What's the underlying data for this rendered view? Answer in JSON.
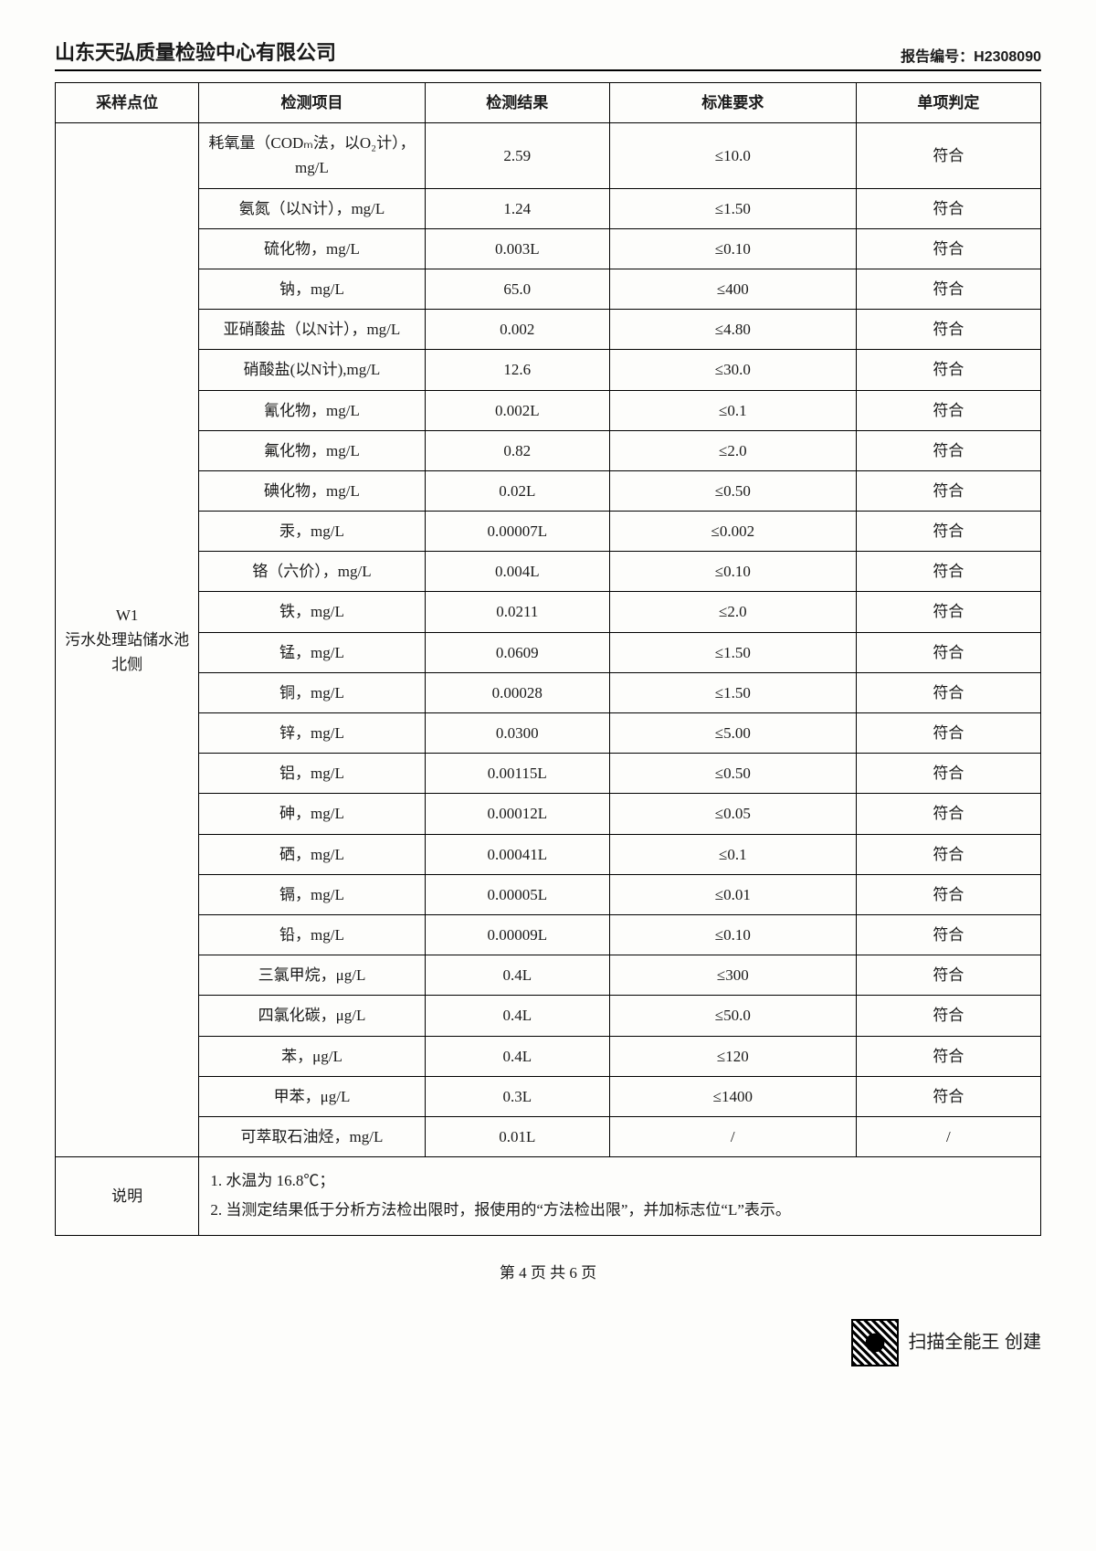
{
  "header": {
    "company": "山东天弘质量检验中心有限公司",
    "report_label": "报告编号：",
    "report_no": "H2308090"
  },
  "columns": {
    "point": "采样点位",
    "item": "检测项目",
    "result": "检测结果",
    "standard": "标准要求",
    "judgement": "单项判定"
  },
  "sampling_point": "W1\n污水处理站储水池\n北侧",
  "rows": [
    {
      "item": "耗氧量（CODₘ法，以O₂计），mg/L",
      "result": "2.59",
      "std": "≤10.0",
      "judge": "符合"
    },
    {
      "item": "氨氮（以N计），mg/L",
      "result": "1.24",
      "std": "≤1.50",
      "judge": "符合"
    },
    {
      "item": "硫化物，mg/L",
      "result": "0.003L",
      "std": "≤0.10",
      "judge": "符合"
    },
    {
      "item": "钠，mg/L",
      "result": "65.0",
      "std": "≤400",
      "judge": "符合"
    },
    {
      "item": "亚硝酸盐（以N计），mg/L",
      "result": "0.002",
      "std": "≤4.80",
      "judge": "符合"
    },
    {
      "item": "硝酸盐(以N计),mg/L",
      "result": "12.6",
      "std": "≤30.0",
      "judge": "符合"
    },
    {
      "item": "氰化物，mg/L",
      "result": "0.002L",
      "std": "≤0.1",
      "judge": "符合"
    },
    {
      "item": "氟化物，mg/L",
      "result": "0.82",
      "std": "≤2.0",
      "judge": "符合"
    },
    {
      "item": "碘化物，mg/L",
      "result": "0.02L",
      "std": "≤0.50",
      "judge": "符合"
    },
    {
      "item": "汞，mg/L",
      "result": "0.00007L",
      "std": "≤0.002",
      "judge": "符合"
    },
    {
      "item": "铬（六价），mg/L",
      "result": "0.004L",
      "std": "≤0.10",
      "judge": "符合"
    },
    {
      "item": "铁，mg/L",
      "result": "0.0211",
      "std": "≤2.0",
      "judge": "符合"
    },
    {
      "item": "锰，mg/L",
      "result": "0.0609",
      "std": "≤1.50",
      "judge": "符合"
    },
    {
      "item": "铜，mg/L",
      "result": "0.00028",
      "std": "≤1.50",
      "judge": "符合"
    },
    {
      "item": "锌，mg/L",
      "result": "0.0300",
      "std": "≤5.00",
      "judge": "符合"
    },
    {
      "item": "铝，mg/L",
      "result": "0.00115L",
      "std": "≤0.50",
      "judge": "符合"
    },
    {
      "item": "砷，mg/L",
      "result": "0.00012L",
      "std": "≤0.05",
      "judge": "符合"
    },
    {
      "item": "硒，mg/L",
      "result": "0.00041L",
      "std": "≤0.1",
      "judge": "符合"
    },
    {
      "item": "镉，mg/L",
      "result": "0.00005L",
      "std": "≤0.01",
      "judge": "符合"
    },
    {
      "item": "铅，mg/L",
      "result": "0.00009L",
      "std": "≤0.10",
      "judge": "符合"
    },
    {
      "item": "三氯甲烷，μg/L",
      "result": "0.4L",
      "std": "≤300",
      "judge": "符合"
    },
    {
      "item": "四氯化碳，μg/L",
      "result": "0.4L",
      "std": "≤50.0",
      "judge": "符合"
    },
    {
      "item": "苯，μg/L",
      "result": "0.4L",
      "std": "≤120",
      "judge": "符合"
    },
    {
      "item": "甲苯，μg/L",
      "result": "0.3L",
      "std": "≤1400",
      "judge": "符合"
    },
    {
      "item": "可萃取石油烃，mg/L",
      "result": "0.01L",
      "std": "/",
      "judge": "/"
    }
  ],
  "notes": {
    "label": "说明",
    "text": "1. 水温为 16.8℃；\n2. 当测定结果低于分析方法检出限时，报使用的“方法检出限”，并加标志位“L”表示。"
  },
  "pager": "第 4 页 共 6 页",
  "footer_scan": "扫描全能王 创建"
}
